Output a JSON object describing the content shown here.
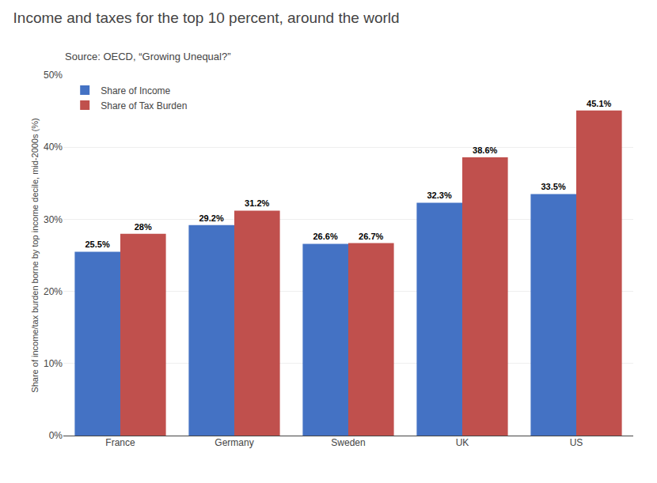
{
  "chart_data": {
    "type": "bar",
    "title": "Income and taxes for the top 10 percent, around the world",
    "subtitle": "Source: OECD, “Growing Unequal?”",
    "ylabel": "Share of income/tax burden borne by top income decile, mid-2000s (%)",
    "categories": [
      "France",
      "Germany",
      "Sweden",
      "UK",
      "US"
    ],
    "series": [
      {
        "name": "Share of Income",
        "color": "#4472C4",
        "values": [
          25.5,
          29.2,
          26.6,
          32.3,
          33.5
        ],
        "value_labels": [
          "25.5%",
          "29.2%",
          "26.6%",
          "32.3%",
          "33.5%"
        ]
      },
      {
        "name": "Share of Tax Burden",
        "color": "#C0504D",
        "values": [
          28.0,
          31.2,
          26.7,
          38.6,
          45.1
        ],
        "value_labels": [
          "28%",
          "31.2%",
          "26.7%",
          "38.6%",
          "45.1%"
        ]
      }
    ],
    "ylim": [
      0,
      50
    ],
    "yticks": [
      {
        "value": 0,
        "label": "0%"
      },
      {
        "value": 10,
        "label": "10%"
      },
      {
        "value": 20,
        "label": "20%"
      },
      {
        "value": 30,
        "label": "30%"
      },
      {
        "value": 40,
        "label": "40%"
      },
      {
        "value": 50,
        "label": "50%"
      }
    ],
    "grid": true,
    "legend": "upper left",
    "data_labels": true
  }
}
